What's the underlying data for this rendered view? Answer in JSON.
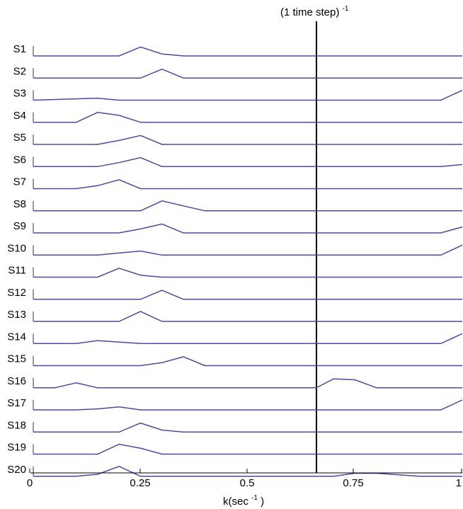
{
  "chart_data": {
    "type": "line",
    "title": "",
    "annotation": "(1 time step)",
    "annotation_superscript": "-1",
    "annotation_x": 0.66,
    "xlabel": "k(sec",
    "xlabel_superscript": "-1",
    "xlabel_close": ")",
    "xlim": [
      0,
      1
    ],
    "xticks": [
      0,
      0.25,
      0.5,
      0.75,
      1
    ],
    "xtick_labels": [
      "0",
      "0.25",
      "0.5",
      "0.75",
      "1"
    ],
    "line_color": "#4a4aa0",
    "vline_color": "#000000",
    "grid": false,
    "series": [
      {
        "name": "S1",
        "points": [
          [
            0,
            0
          ],
          [
            0.2,
            0
          ],
          [
            0.25,
            0.9
          ],
          [
            0.3,
            0.2
          ],
          [
            0.35,
            0
          ],
          [
            1,
            0
          ]
        ]
      },
      {
        "name": "S2",
        "points": [
          [
            0,
            0
          ],
          [
            0.25,
            0
          ],
          [
            0.3,
            0.9
          ],
          [
            0.35,
            0
          ],
          [
            1,
            0
          ]
        ]
      },
      {
        "name": "S3",
        "points": [
          [
            0,
            0
          ],
          [
            0.15,
            0.2
          ],
          [
            0.2,
            0
          ],
          [
            0.95,
            0
          ],
          [
            1,
            1.0
          ]
        ]
      },
      {
        "name": "S4",
        "points": [
          [
            0,
            0
          ],
          [
            0.1,
            0
          ],
          [
            0.15,
            1.0
          ],
          [
            0.2,
            0.7
          ],
          [
            0.25,
            0
          ],
          [
            1,
            0
          ]
        ]
      },
      {
        "name": "S5",
        "points": [
          [
            0,
            0
          ],
          [
            0.15,
            0
          ],
          [
            0.2,
            0.4
          ],
          [
            0.25,
            0.9
          ],
          [
            0.3,
            0
          ],
          [
            1,
            0
          ]
        ]
      },
      {
        "name": "S6",
        "points": [
          [
            0,
            0
          ],
          [
            0.15,
            0
          ],
          [
            0.2,
            0.4
          ],
          [
            0.25,
            0.9
          ],
          [
            0.3,
            0
          ],
          [
            0.95,
            0
          ],
          [
            1,
            0.2
          ]
        ]
      },
      {
        "name": "S7",
        "points": [
          [
            0,
            0
          ],
          [
            0.1,
            0
          ],
          [
            0.15,
            0.3
          ],
          [
            0.2,
            0.9
          ],
          [
            0.25,
            0
          ],
          [
            1,
            0
          ]
        ]
      },
      {
        "name": "S8",
        "points": [
          [
            0,
            0
          ],
          [
            0.25,
            0
          ],
          [
            0.3,
            1.0
          ],
          [
            0.35,
            0.5
          ],
          [
            0.4,
            0
          ],
          [
            1,
            0
          ]
        ]
      },
      {
        "name": "S9",
        "points": [
          [
            0,
            0
          ],
          [
            0.2,
            0
          ],
          [
            0.25,
            0.4
          ],
          [
            0.3,
            0.9
          ],
          [
            0.35,
            0
          ],
          [
            0.95,
            0
          ],
          [
            1,
            0.6
          ]
        ]
      },
      {
        "name": "S10",
        "points": [
          [
            0,
            0
          ],
          [
            0.15,
            0
          ],
          [
            0.2,
            0.2
          ],
          [
            0.25,
            0.4
          ],
          [
            0.3,
            0
          ],
          [
            0.95,
            0
          ],
          [
            1,
            1.0
          ]
        ]
      },
      {
        "name": "S11",
        "points": [
          [
            0,
            0
          ],
          [
            0.15,
            0
          ],
          [
            0.2,
            0.9
          ],
          [
            0.25,
            0.2
          ],
          [
            0.3,
            0
          ],
          [
            1,
            0
          ]
        ]
      },
      {
        "name": "S12",
        "points": [
          [
            0,
            0
          ],
          [
            0.25,
            0
          ],
          [
            0.3,
            0.9
          ],
          [
            0.35,
            0
          ],
          [
            1,
            0
          ]
        ]
      },
      {
        "name": "S13",
        "points": [
          [
            0,
            0
          ],
          [
            0.2,
            0
          ],
          [
            0.25,
            1.0
          ],
          [
            0.3,
            0
          ],
          [
            1,
            0
          ]
        ]
      },
      {
        "name": "S14",
        "points": [
          [
            0,
            0
          ],
          [
            0.1,
            0
          ],
          [
            0.15,
            0.3
          ],
          [
            0.25,
            0
          ],
          [
            0.95,
            0
          ],
          [
            1,
            1.0
          ]
        ]
      },
      {
        "name": "S15",
        "points": [
          [
            0,
            0
          ],
          [
            0.25,
            0
          ],
          [
            0.3,
            0.3
          ],
          [
            0.35,
            0.9
          ],
          [
            0.4,
            0
          ],
          [
            1,
            0
          ]
        ]
      },
      {
        "name": "S16",
        "points": [
          [
            0,
            0
          ],
          [
            0.05,
            0
          ],
          [
            0.1,
            0.5
          ],
          [
            0.15,
            0
          ],
          [
            0.66,
            0
          ],
          [
            0.7,
            0.9
          ],
          [
            0.75,
            0.8
          ],
          [
            0.8,
            0
          ],
          [
            1,
            0
          ]
        ]
      },
      {
        "name": "S17",
        "points": [
          [
            0,
            0
          ],
          [
            0.1,
            0
          ],
          [
            0.15,
            0.1
          ],
          [
            0.2,
            0.3
          ],
          [
            0.25,
            0
          ],
          [
            0.95,
            0
          ],
          [
            1,
            1.0
          ]
        ]
      },
      {
        "name": "S18",
        "points": [
          [
            0,
            0
          ],
          [
            0.2,
            0
          ],
          [
            0.25,
            0.9
          ],
          [
            0.3,
            0.2
          ],
          [
            0.35,
            0
          ],
          [
            1,
            0
          ]
        ]
      },
      {
        "name": "S19",
        "points": [
          [
            0,
            0
          ],
          [
            0.15,
            0
          ],
          [
            0.2,
            1.0
          ],
          [
            0.25,
            0.6
          ],
          [
            0.3,
            0
          ],
          [
            1,
            0
          ]
        ]
      },
      {
        "name": "S20",
        "points": [
          [
            0,
            0
          ],
          [
            0.1,
            0
          ],
          [
            0.15,
            0.2
          ],
          [
            0.2,
            1.0
          ],
          [
            0.25,
            0
          ],
          [
            0.7,
            0
          ],
          [
            0.75,
            0.3
          ],
          [
            0.8,
            0.3
          ],
          [
            0.9,
            0
          ],
          [
            1,
            0
          ]
        ]
      }
    ]
  }
}
